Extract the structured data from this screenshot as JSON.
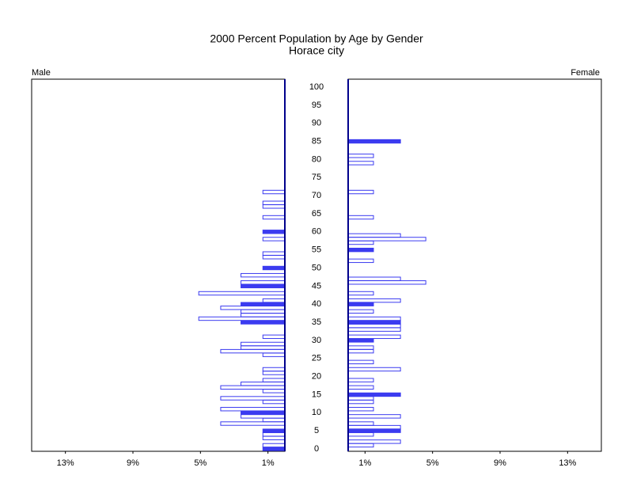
{
  "chart_data": {
    "type": "pyramid",
    "title": "2000 Percent Population by Age by Gender",
    "subtitle": "Horace city",
    "color": "#3b3bf0",
    "ylim": [
      0,
      100
    ],
    "yticks": [
      0,
      5,
      10,
      15,
      20,
      25,
      30,
      35,
      40,
      45,
      50,
      55,
      60,
      65,
      70,
      75,
      80,
      85,
      90,
      95,
      100
    ],
    "xlim": [
      0,
      15
    ],
    "xticks": [
      {
        "value": 1,
        "label": "1%"
      },
      {
        "value": 5,
        "label": "5%"
      },
      {
        "value": 9,
        "label": "9%"
      },
      {
        "value": 13,
        "label": "13%"
      }
    ],
    "series": [
      {
        "name": "Male",
        "side": "left",
        "ages": [
          0,
          1,
          3,
          4,
          5,
          7,
          8,
          9,
          10,
          11,
          13,
          14,
          16,
          17,
          18,
          19,
          21,
          22,
          26,
          27,
          28,
          29,
          31,
          35,
          36,
          37,
          38,
          39,
          40,
          41,
          43,
          45,
          46,
          48,
          50,
          53,
          54,
          58,
          60,
          64,
          67,
          68,
          71
        ],
        "values": [
          1.3,
          1.3,
          1.3,
          1.3,
          1.3,
          3.8,
          1.3,
          2.6,
          2.6,
          3.8,
          1.3,
          3.8,
          1.3,
          3.8,
          2.6,
          1.3,
          1.3,
          1.3,
          1.3,
          3.8,
          2.6,
          2.6,
          1.3,
          2.6,
          5.1,
          2.6,
          2.6,
          3.8,
          2.6,
          1.3,
          5.1,
          2.6,
          2.6,
          2.6,
          1.3,
          1.3,
          1.3,
          1.3,
          1.3,
          1.3,
          1.3,
          1.3,
          1.3
        ],
        "filled": [
          true,
          false,
          false,
          false,
          true,
          false,
          false,
          false,
          true,
          false,
          false,
          false,
          false,
          false,
          false,
          false,
          false,
          false,
          false,
          false,
          false,
          false,
          false,
          true,
          false,
          false,
          false,
          false,
          true,
          false,
          false,
          true,
          false,
          false,
          true,
          false,
          false,
          false,
          true,
          false,
          false,
          false,
          false
        ]
      },
      {
        "name": "Female",
        "side": "right",
        "ages": [
          1,
          2,
          4,
          5,
          6,
          7,
          9,
          11,
          13,
          14,
          15,
          17,
          19,
          22,
          24,
          27,
          28,
          30,
          31,
          33,
          34,
          35,
          36,
          38,
          40,
          41,
          43,
          46,
          47,
          52,
          55,
          57,
          58,
          59,
          64,
          71,
          79,
          81,
          85
        ],
        "values": [
          1.5,
          3.1,
          1.5,
          3.1,
          3.1,
          1.5,
          3.1,
          1.5,
          1.5,
          1.5,
          3.1,
          1.5,
          1.5,
          3.1,
          1.5,
          1.5,
          1.5,
          1.5,
          3.1,
          3.1,
          3.1,
          3.1,
          3.1,
          1.5,
          1.5,
          3.1,
          1.5,
          4.6,
          3.1,
          1.5,
          1.5,
          1.5,
          4.6,
          3.1,
          1.5,
          1.5,
          1.5,
          1.5,
          3.1
        ],
        "filled": [
          false,
          false,
          false,
          true,
          false,
          false,
          false,
          false,
          false,
          false,
          true,
          false,
          false,
          false,
          false,
          false,
          false,
          true,
          false,
          false,
          false,
          true,
          false,
          false,
          true,
          false,
          false,
          false,
          false,
          false,
          true,
          false,
          false,
          false,
          false,
          false,
          false,
          false,
          true
        ]
      }
    ]
  }
}
